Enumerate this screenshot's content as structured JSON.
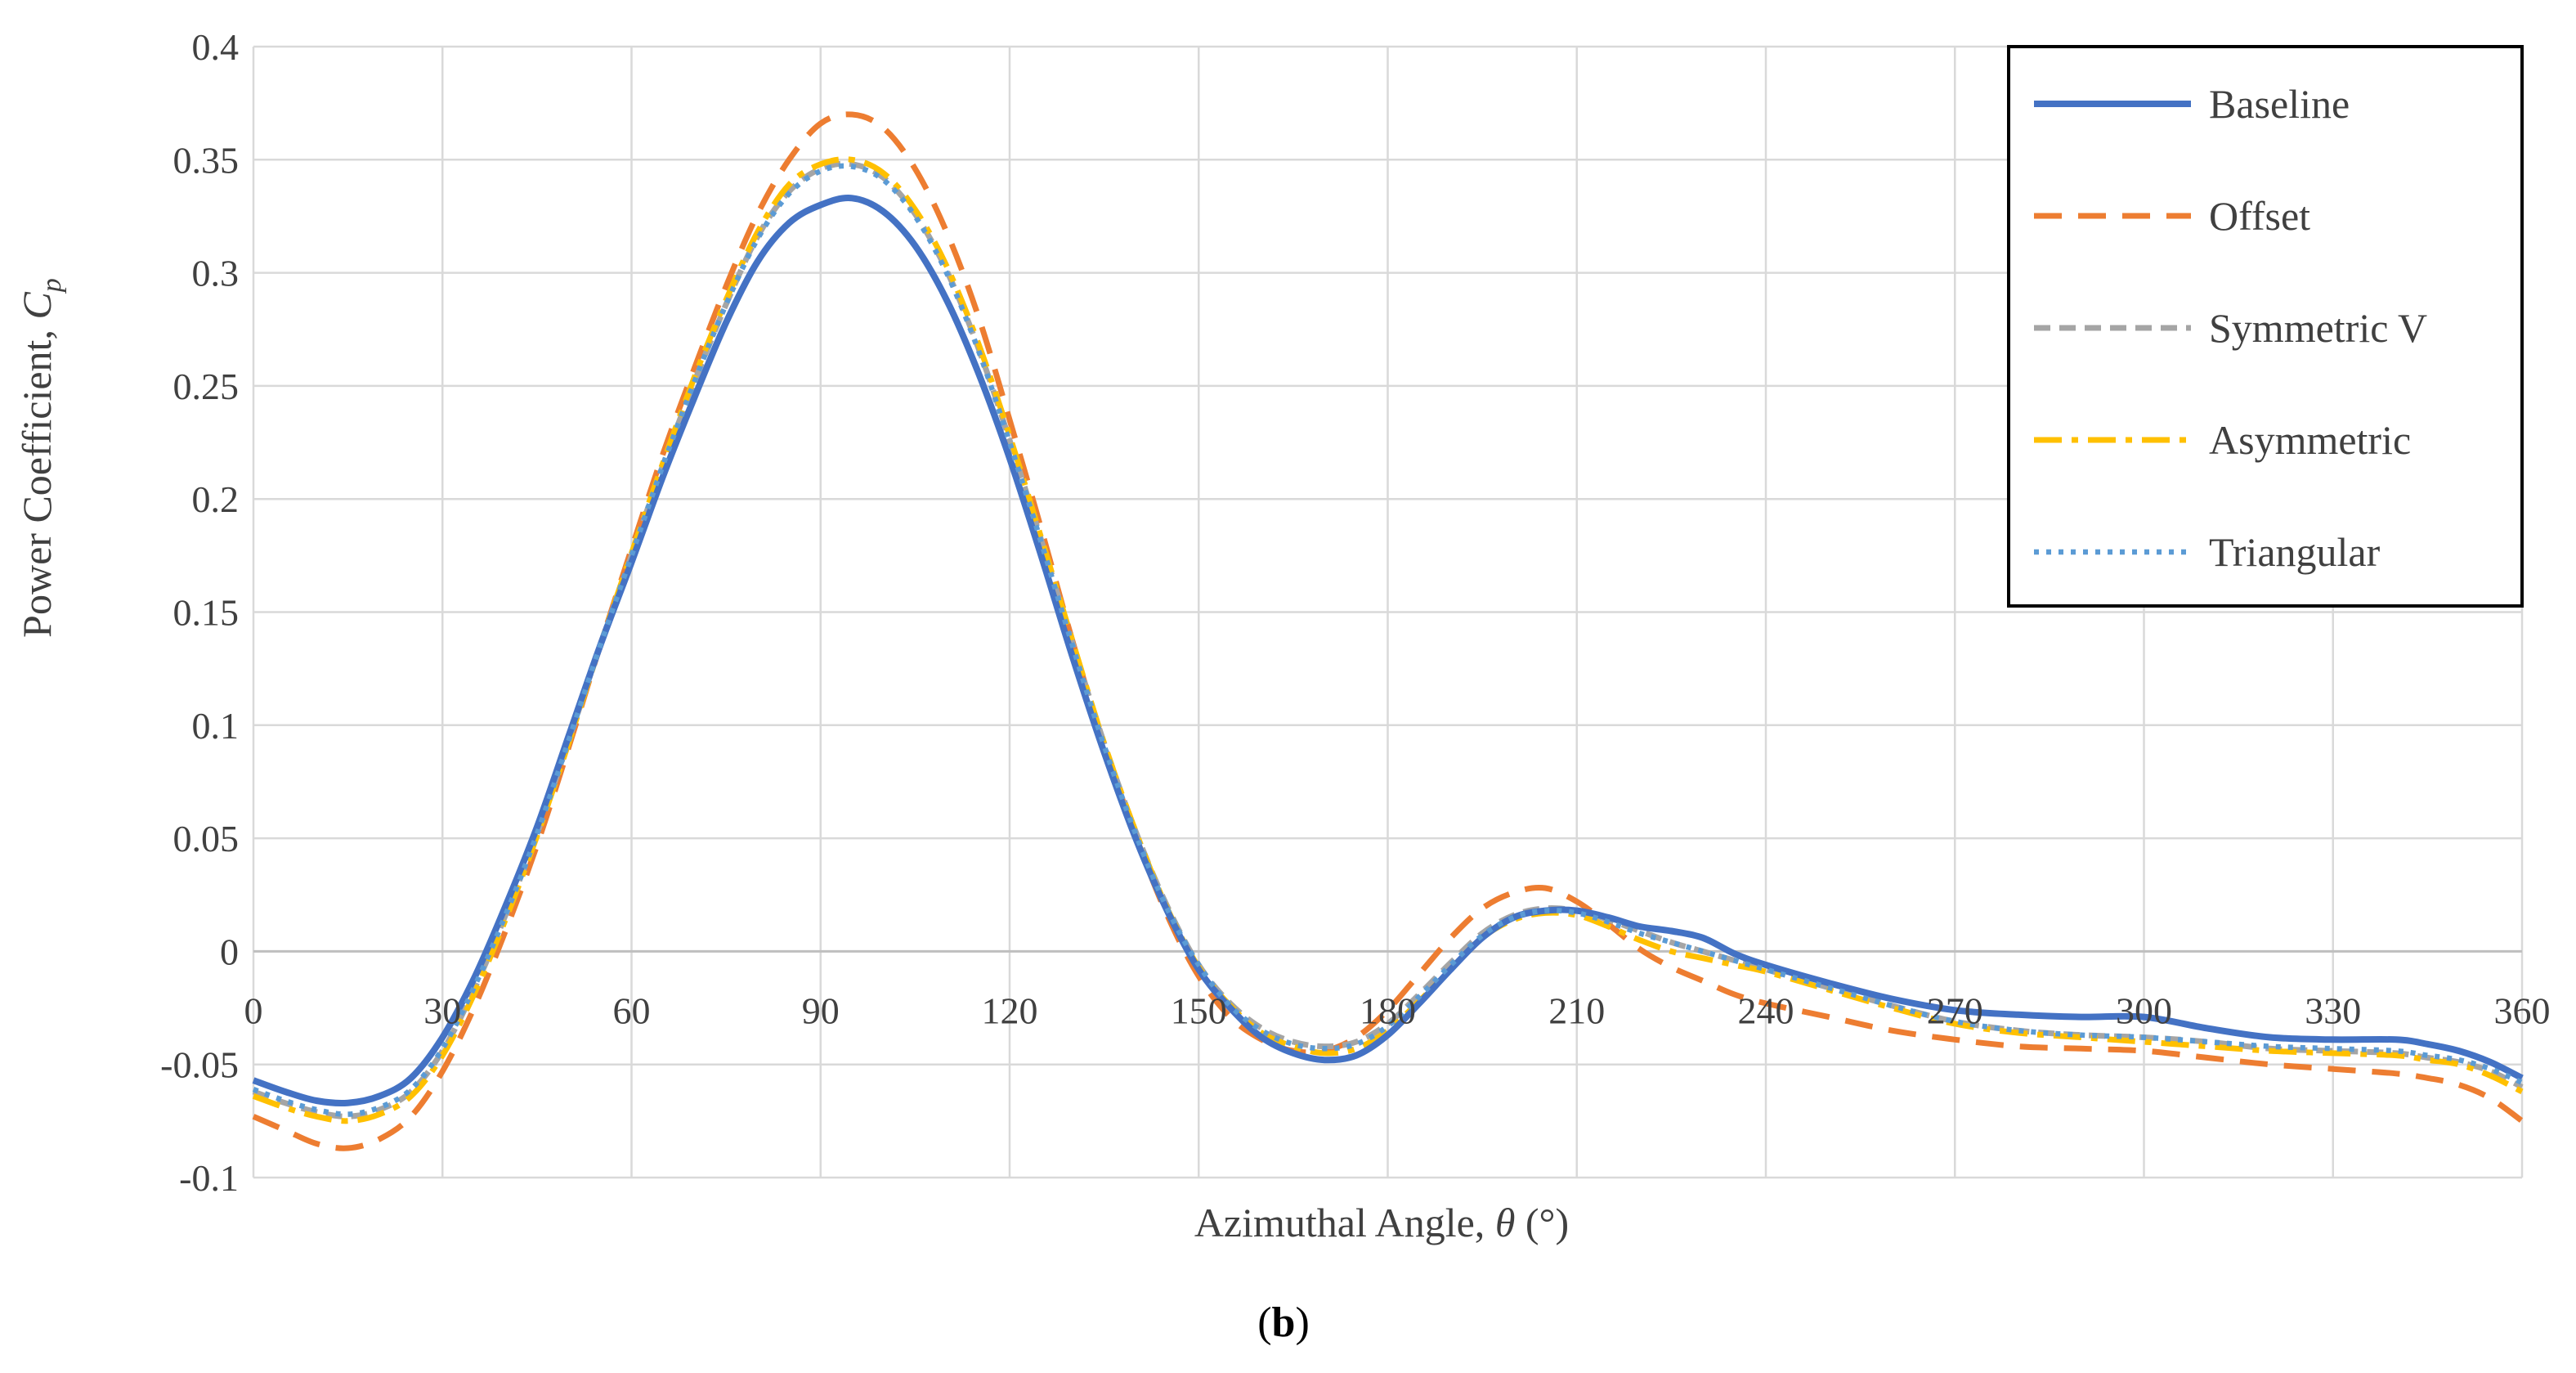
{
  "chart_data": {
    "type": "line",
    "title": "",
    "xlabel": "Azimuthal Angle, θ (°)",
    "xlabel_parts": {
      "main": "Azimuthal Angle, ",
      "symbol": "θ",
      "unit": " (°)"
    },
    "ylabel": "Power Coefficient, Cp",
    "ylabel_parts": {
      "main": "Power Coefficient, ",
      "symbol": "C",
      "sub": "p"
    },
    "xlim": [
      0,
      360
    ],
    "ylim": [
      -0.1,
      0.4
    ],
    "xticks": [
      0,
      30,
      60,
      90,
      120,
      150,
      180,
      210,
      240,
      270,
      300,
      330,
      360
    ],
    "yticks": [
      -0.1,
      -0.05,
      0,
      0.05,
      0.1,
      0.15,
      0.2,
      0.25,
      0.3,
      0.35,
      0.4
    ],
    "ytick_labels": [
      "-0.1",
      "-0.05",
      "0",
      "0.05",
      "0.1",
      "0.15",
      "0.2",
      "0.25",
      "0.3",
      "0.35",
      "0.4"
    ],
    "grid": true,
    "legend_position": "top-right",
    "caption": "(b)",
    "caption_parts": {
      "open": "(",
      "letter": "b",
      "close": ")"
    },
    "series": [
      {
        "name": "Baseline",
        "color": "#4472C4",
        "dash": "solid",
        "x": [
          0,
          5,
          10,
          15,
          20,
          25,
          30,
          35,
          40,
          45,
          50,
          55,
          60,
          65,
          70,
          75,
          80,
          85,
          90,
          95,
          100,
          105,
          110,
          115,
          120,
          125,
          130,
          135,
          140,
          145,
          150,
          155,
          160,
          165,
          170,
          175,
          180,
          185,
          190,
          195,
          200,
          205,
          210,
          215,
          220,
          225,
          230,
          235,
          240,
          250,
          260,
          270,
          280,
          290,
          300,
          310,
          320,
          330,
          340,
          345,
          350,
          355,
          360
        ],
        "y": [
          -0.057,
          -0.062,
          -0.066,
          -0.067,
          -0.064,
          -0.056,
          -0.038,
          -0.012,
          0.02,
          0.055,
          0.095,
          0.135,
          0.172,
          0.21,
          0.245,
          0.278,
          0.305,
          0.322,
          0.33,
          0.333,
          0.327,
          0.312,
          0.288,
          0.256,
          0.218,
          0.175,
          0.13,
          0.088,
          0.05,
          0.018,
          -0.008,
          -0.025,
          -0.038,
          -0.045,
          -0.048,
          -0.046,
          -0.037,
          -0.023,
          -0.008,
          0.006,
          0.015,
          0.018,
          0.018,
          0.015,
          0.011,
          0.009,
          0.006,
          -0.001,
          -0.006,
          -0.014,
          -0.021,
          -0.026,
          -0.028,
          -0.029,
          -0.029,
          -0.034,
          -0.038,
          -0.039,
          -0.039,
          -0.041,
          -0.044,
          -0.049,
          -0.056
        ]
      },
      {
        "name": "Offset",
        "color": "#ED7D31",
        "dash": "dashed",
        "x": [
          0,
          5,
          10,
          15,
          20,
          25,
          30,
          35,
          40,
          45,
          50,
          55,
          60,
          65,
          70,
          75,
          80,
          85,
          90,
          95,
          100,
          105,
          110,
          115,
          120,
          125,
          130,
          135,
          140,
          145,
          150,
          155,
          160,
          165,
          170,
          175,
          180,
          185,
          190,
          195,
          200,
          205,
          210,
          215,
          220,
          225,
          230,
          235,
          240,
          250,
          260,
          270,
          280,
          290,
          300,
          310,
          320,
          330,
          340,
          345,
          350,
          355,
          360
        ],
        "y": [
          -0.073,
          -0.079,
          -0.085,
          -0.087,
          -0.083,
          -0.073,
          -0.053,
          -0.025,
          0.009,
          0.047,
          0.09,
          0.135,
          0.178,
          0.22,
          0.258,
          0.294,
          0.326,
          0.35,
          0.366,
          0.37,
          0.364,
          0.346,
          0.318,
          0.281,
          0.235,
          0.187,
          0.137,
          0.091,
          0.051,
          0.016,
          -0.011,
          -0.029,
          -0.039,
          -0.044,
          -0.044,
          -0.038,
          -0.026,
          -0.01,
          0.006,
          0.019,
          0.026,
          0.028,
          0.022,
          0.012,
          0.001,
          -0.007,
          -0.013,
          -0.019,
          -0.023,
          -0.029,
          -0.035,
          -0.039,
          -0.042,
          -0.043,
          -0.044,
          -0.047,
          -0.05,
          -0.052,
          -0.054,
          -0.056,
          -0.059,
          -0.065,
          -0.075
        ]
      },
      {
        "name": "Symmetric V",
        "color": "#A5A5A5",
        "dash": "dashed-short",
        "x": [
          0,
          5,
          10,
          15,
          20,
          25,
          30,
          35,
          40,
          45,
          50,
          55,
          60,
          65,
          70,
          75,
          80,
          85,
          90,
          95,
          100,
          105,
          110,
          115,
          120,
          125,
          130,
          135,
          140,
          145,
          150,
          155,
          160,
          165,
          170,
          175,
          180,
          185,
          190,
          195,
          200,
          205,
          210,
          215,
          220,
          225,
          230,
          235,
          240,
          250,
          260,
          270,
          280,
          290,
          300,
          310,
          320,
          330,
          340,
          345,
          350,
          355,
          360
        ],
        "y": [
          -0.062,
          -0.067,
          -0.071,
          -0.073,
          -0.07,
          -0.062,
          -0.044,
          -0.017,
          0.016,
          0.052,
          0.093,
          0.135,
          0.175,
          0.215,
          0.252,
          0.286,
          0.316,
          0.336,
          0.346,
          0.348,
          0.342,
          0.326,
          0.301,
          0.267,
          0.226,
          0.182,
          0.136,
          0.092,
          0.053,
          0.02,
          -0.006,
          -0.023,
          -0.034,
          -0.04,
          -0.042,
          -0.04,
          -0.032,
          -0.019,
          -0.005,
          0.008,
          0.016,
          0.019,
          0.018,
          0.014,
          0.009,
          0.004,
          0.0,
          -0.004,
          -0.008,
          -0.016,
          -0.024,
          -0.031,
          -0.035,
          -0.037,
          -0.038,
          -0.04,
          -0.043,
          -0.044,
          -0.045,
          -0.047,
          -0.049,
          -0.053,
          -0.06
        ]
      },
      {
        "name": "Asymmetric",
        "color": "#FFC000",
        "dash": "dash-dot",
        "x": [
          0,
          5,
          10,
          15,
          20,
          25,
          30,
          35,
          40,
          45,
          50,
          55,
          60,
          65,
          70,
          75,
          80,
          85,
          90,
          95,
          100,
          105,
          110,
          115,
          120,
          125,
          130,
          135,
          140,
          145,
          150,
          155,
          160,
          165,
          170,
          175,
          180,
          185,
          190,
          195,
          200,
          205,
          210,
          215,
          220,
          225,
          230,
          235,
          240,
          250,
          260,
          270,
          280,
          290,
          300,
          310,
          320,
          330,
          340,
          345,
          350,
          355,
          360
        ],
        "y": [
          -0.064,
          -0.069,
          -0.073,
          -0.075,
          -0.072,
          -0.064,
          -0.046,
          -0.019,
          0.014,
          0.051,
          0.092,
          0.135,
          0.176,
          0.216,
          0.254,
          0.288,
          0.318,
          0.339,
          0.348,
          0.35,
          0.344,
          0.328,
          0.303,
          0.269,
          0.228,
          0.183,
          0.137,
          0.092,
          0.053,
          0.019,
          -0.007,
          -0.024,
          -0.036,
          -0.042,
          -0.045,
          -0.043,
          -0.035,
          -0.022,
          -0.008,
          0.006,
          0.014,
          0.017,
          0.016,
          0.011,
          0.005,
          0.0,
          -0.003,
          -0.006,
          -0.009,
          -0.017,
          -0.025,
          -0.032,
          -0.036,
          -0.038,
          -0.04,
          -0.042,
          -0.044,
          -0.045,
          -0.046,
          -0.048,
          -0.05,
          -0.055,
          -0.062
        ]
      },
      {
        "name": "Triangular",
        "color": "#5B9BD5",
        "dash": "dotted",
        "x": [
          0,
          5,
          10,
          15,
          20,
          25,
          30,
          35,
          40,
          45,
          50,
          55,
          60,
          65,
          70,
          75,
          80,
          85,
          90,
          95,
          100,
          105,
          110,
          115,
          120,
          125,
          130,
          135,
          140,
          145,
          150,
          155,
          160,
          165,
          170,
          175,
          180,
          185,
          190,
          195,
          200,
          205,
          210,
          215,
          220,
          225,
          230,
          235,
          240,
          250,
          260,
          270,
          280,
          290,
          300,
          310,
          320,
          330,
          340,
          345,
          350,
          355,
          360
        ],
        "y": [
          -0.061,
          -0.066,
          -0.07,
          -0.072,
          -0.069,
          -0.061,
          -0.043,
          -0.016,
          0.016,
          0.052,
          0.093,
          0.135,
          0.175,
          0.215,
          0.252,
          0.286,
          0.315,
          0.335,
          0.345,
          0.347,
          0.341,
          0.325,
          0.3,
          0.266,
          0.225,
          0.181,
          0.135,
          0.091,
          0.052,
          0.019,
          -0.006,
          -0.024,
          -0.035,
          -0.041,
          -0.043,
          -0.041,
          -0.033,
          -0.02,
          -0.006,
          0.007,
          0.015,
          0.018,
          0.017,
          0.013,
          0.008,
          0.004,
          0.0,
          -0.004,
          -0.008,
          -0.016,
          -0.024,
          -0.031,
          -0.035,
          -0.037,
          -0.038,
          -0.04,
          -0.042,
          -0.043,
          -0.044,
          -0.046,
          -0.048,
          -0.052,
          -0.058
        ]
      }
    ]
  }
}
